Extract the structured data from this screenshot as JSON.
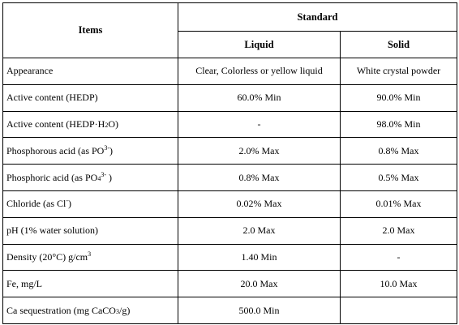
{
  "header": {
    "items_label": "Items",
    "standard_label": "Standard",
    "liquid_label": "Liquid",
    "solid_label": "Solid"
  },
  "rows": [
    {
      "item": "Appearance",
      "item_suffix": "",
      "item_sup": "",
      "item_tail": "",
      "liquid": "Clear, Colorless or yellow liquid",
      "solid": "White crystal powder"
    },
    {
      "item": "Active content (HEDP)",
      "item_suffix": "",
      "item_sup": "",
      "item_tail": "",
      "liquid": "60.0% Min",
      "solid": "90.0% Min"
    },
    {
      "item": "Active content (HEDP·H",
      "item_suffix": "2",
      "item_sup": "",
      "item_tail": "O)",
      "liquid": "-",
      "solid": "98.0% Min"
    },
    {
      "item": "Phosphorous acid (as PO",
      "item_suffix": "",
      "item_sup": "3-",
      "item_tail": ")",
      "liquid": "2.0% Max",
      "solid": "0.8% Max"
    },
    {
      "item": "Phosphoric acid  (as PO",
      "item_suffix": "4",
      "item_sup": "3-",
      "item_tail": " )",
      "liquid": "0.8% Max",
      "solid": "0.5% Max"
    },
    {
      "item": "Chloride (as Cl",
      "item_suffix": "",
      "item_sup": "-",
      "item_tail": ")",
      "liquid": "0.02% Max",
      "solid": "0.01% Max"
    },
    {
      "item": "pH (1% water solution)",
      "item_suffix": "",
      "item_sup": "",
      "item_tail": "",
      "liquid": "2.0 Max",
      "solid": "2.0 Max"
    },
    {
      "item": "Density  (20°C) g/cm",
      "item_suffix": "",
      "item_sup": "3",
      "item_tail": "",
      "liquid": "1.40 Min",
      "solid": "-"
    },
    {
      "item": "Fe, mg/L",
      "item_suffix": "",
      "item_sup": "",
      "item_tail": "",
      "liquid": "20.0 Max",
      "solid": "10.0 Max"
    },
    {
      "item": "Ca sequestration (mg CaCO",
      "item_suffix": "3",
      "item_sup": "",
      "item_tail": "/g)",
      "liquid": "500.0 Min",
      "solid": ""
    }
  ]
}
